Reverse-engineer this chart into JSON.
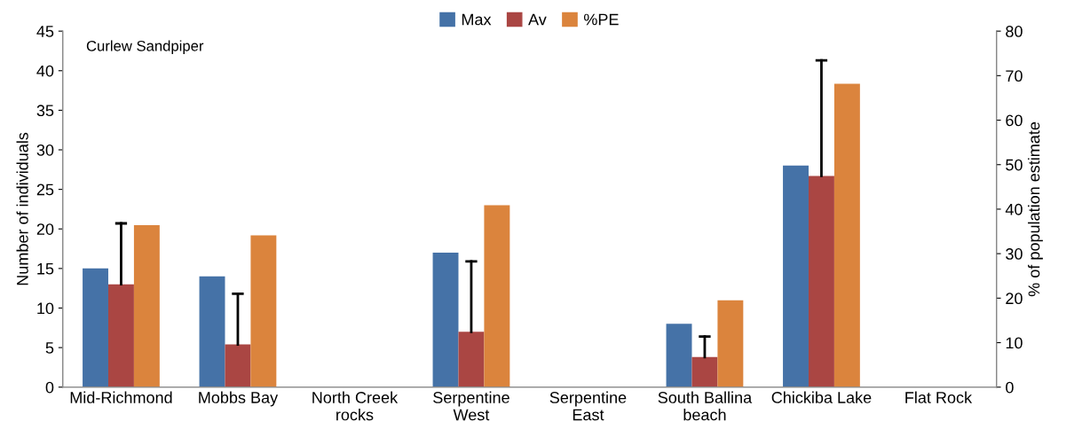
{
  "chart_data": {
    "type": "bar",
    "categories": [
      "Mid-Richmond",
      "Mobbs Bay",
      "North Creek\nrocks",
      "Serpentine\nWest",
      "Serpentine\nEast",
      "South Ballina\nbeach",
      "Chickiba Lake",
      "Flat Rock"
    ],
    "series": [
      {
        "name": "Max",
        "color": "#4572a7",
        "values": [
          15,
          14,
          0,
          17,
          0,
          8,
          28,
          0
        ]
      },
      {
        "name": "Av",
        "color": "#aa4643",
        "values": [
          13,
          5.4,
          0,
          7,
          0,
          3.8,
          26.7,
          0
        ],
        "errors": [
          [
            13,
            20.7
          ],
          [
            5.4,
            11.8
          ],
          null,
          [
            7,
            15.9
          ],
          null,
          [
            3.8,
            6.4
          ],
          [
            26.7,
            41.3
          ],
          null
        ]
      },
      {
        "name": "%PE",
        "color": "#db843d",
        "axis": "y2",
        "values": [
          36.4,
          34.1,
          0,
          40.9,
          0,
          19.5,
          68.2,
          0
        ]
      }
    ],
    "ylabel": "Number of individuals",
    "y2label": "% of population estimate",
    "ylim": [
      0,
      45
    ],
    "yticks": [
      0,
      5,
      10,
      15,
      20,
      25,
      30,
      35,
      40,
      45
    ],
    "y2lim": [
      0,
      80
    ],
    "y2ticks": [
      0,
      10,
      20,
      30,
      40,
      50,
      60,
      70,
      80
    ],
    "annotations": [
      "Curlew Sandpiper"
    ],
    "legend": "top",
    "grid": false
  }
}
